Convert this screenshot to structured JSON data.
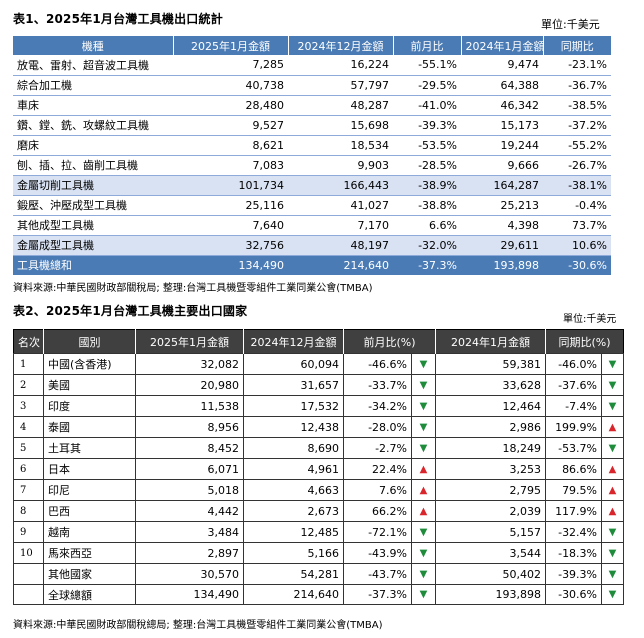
{
  "table1": {
    "title": "表1、2025年1月台灣工具機出口統計",
    "unit": "單位:千美元",
    "headers": [
      "機種",
      "2025年1月金額",
      "2024年12月金額",
      "前月比",
      "2024年1月金額",
      "同期比"
    ],
    "rows": [
      {
        "name": "放電、雷射、超音波工具機",
        "jan2025": "7,285",
        "dec2024": "16,224",
        "mom": "-55.1%",
        "jan2024": "9,474",
        "yoy": "-23.1%"
      },
      {
        "name": "綜合加工機",
        "jan2025": "40,738",
        "dec2024": "57,797",
        "mom": "-29.5%",
        "jan2024": "64,388",
        "yoy": "-36.7%"
      },
      {
        "name": "車床",
        "jan2025": "28,480",
        "dec2024": "48,287",
        "mom": "-41.0%",
        "jan2024": "46,342",
        "yoy": "-38.5%"
      },
      {
        "name": "鑽、鏜、銑、攻螺紋工具機",
        "jan2025": "9,527",
        "dec2024": "15,698",
        "mom": "-39.3%",
        "jan2024": "15,173",
        "yoy": "-37.2%"
      },
      {
        "name": "磨床",
        "jan2025": "8,621",
        "dec2024": "18,534",
        "mom": "-53.5%",
        "jan2024": "19,244",
        "yoy": "-55.2%"
      },
      {
        "name": "刨、插、拉、齒削工具機",
        "jan2025": "7,083",
        "dec2024": "9,903",
        "mom": "-28.5%",
        "jan2024": "9,666",
        "yoy": "-26.7%"
      },
      {
        "name": "金屬切削工具機",
        "jan2025": "101,734",
        "dec2024": "166,443",
        "mom": "-38.9%",
        "jan2024": "164,287",
        "yoy": "-38.1%"
      },
      {
        "name": "鍛壓、沖壓成型工具機",
        "jan2025": "25,116",
        "dec2024": "41,027",
        "mom": "-38.8%",
        "jan2024": "25,213",
        "yoy": "-0.4%"
      },
      {
        "name": "其他成型工具機",
        "jan2025": "7,640",
        "dec2024": "7,170",
        "mom": "6.6%",
        "jan2024": "4,398",
        "yoy": "73.7%"
      },
      {
        "name": "金屬成型工具機",
        "jan2025": "32,756",
        "dec2024": "48,197",
        "mom": "-32.0%",
        "jan2024": "29,611",
        "yoy": "10.6%"
      },
      {
        "name": "工具機總和",
        "jan2025": "134,490",
        "dec2024": "214,640",
        "mom": "-37.3%",
        "jan2024": "193,898",
        "yoy": "-30.6%"
      }
    ],
    "source": "資料來源:中華民國財政部關稅局;  整理:台灣工具機暨零組件工業同業公會(TMBA)"
  },
  "table2": {
    "title": "表2、2025年1月台灣工具機主要出口國家",
    "unit": "單位:千美元",
    "headers": [
      "名次",
      "國別",
      "2025年1月金額",
      "2024年12月金額",
      "前月比(%)",
      "2024年1月金額",
      "同期比(%)"
    ],
    "rows": [
      {
        "rank": "1",
        "country": "中國(含香港)",
        "jan2025": "32,082",
        "dec2024": "60,094",
        "mom": "-46.6%",
        "mom_dir": "down",
        "jan2024": "59,381",
        "yoy": "-46.0%",
        "yoy_dir": "down"
      },
      {
        "rank": "2",
        "country": "美國",
        "jan2025": "20,980",
        "dec2024": "31,657",
        "mom": "-33.7%",
        "mom_dir": "down",
        "jan2024": "33,628",
        "yoy": "-37.6%",
        "yoy_dir": "down"
      },
      {
        "rank": "3",
        "country": "印度",
        "jan2025": "11,538",
        "dec2024": "17,532",
        "mom": "-34.2%",
        "mom_dir": "down",
        "jan2024": "12,464",
        "yoy": "-7.4%",
        "yoy_dir": "down"
      },
      {
        "rank": "4",
        "country": "泰國",
        "jan2025": "8,956",
        "dec2024": "12,438",
        "mom": "-28.0%",
        "mom_dir": "down",
        "jan2024": "2,986",
        "yoy": "199.9%",
        "yoy_dir": "up"
      },
      {
        "rank": "5",
        "country": "土耳其",
        "jan2025": "8,452",
        "dec2024": "8,690",
        "mom": "-2.7%",
        "mom_dir": "down",
        "jan2024": "18,249",
        "yoy": "-53.7%",
        "yoy_dir": "down"
      },
      {
        "rank": "6",
        "country": "日本",
        "jan2025": "6,071",
        "dec2024": "4,961",
        "mom": "22.4%",
        "mom_dir": "up",
        "jan2024": "3,253",
        "yoy": "86.6%",
        "yoy_dir": "up"
      },
      {
        "rank": "7",
        "country": "印尼",
        "jan2025": "5,018",
        "dec2024": "4,663",
        "mom": "7.6%",
        "mom_dir": "up",
        "jan2024": "2,795",
        "yoy": "79.5%",
        "yoy_dir": "up"
      },
      {
        "rank": "8",
        "country": "巴西",
        "jan2025": "4,442",
        "dec2024": "2,673",
        "mom": "66.2%",
        "mom_dir": "up",
        "jan2024": "2,039",
        "yoy": "117.9%",
        "yoy_dir": "up"
      },
      {
        "rank": "9",
        "country": "越南",
        "jan2025": "3,484",
        "dec2024": "12,485",
        "mom": "-72.1%",
        "mom_dir": "down",
        "jan2024": "5,157",
        "yoy": "-32.4%",
        "yoy_dir": "down"
      },
      {
        "rank": "10",
        "country": "馬來西亞",
        "jan2025": "2,897",
        "dec2024": "5,166",
        "mom": "-43.9%",
        "mom_dir": "down",
        "jan2024": "3,544",
        "yoy": "-18.3%",
        "yoy_dir": "down"
      },
      {
        "rank": "",
        "country": "其他國家",
        "jan2025": "30,570",
        "dec2024": "54,281",
        "mom": "-43.7%",
        "mom_dir": "down",
        "jan2024": "50,402",
        "yoy": "-39.3%",
        "yoy_dir": "down"
      },
      {
        "rank": "",
        "country": "全球總額",
        "jan2025": "134,490",
        "dec2024": "214,640",
        "mom": "-37.3%",
        "mom_dir": "down",
        "jan2024": "193,898",
        "yoy": "-30.6%",
        "yoy_dir": "down"
      }
    ],
    "source": "資料來源:中華民國財政部關稅總局;  整理:台灣工具機暨零組件工業同業公會(TMBA)"
  },
  "colors": {
    "header_blue": "#4a7bb5",
    "row_shade": "#d9e2f3",
    "header_dark": "#404040",
    "arrow_up": "#d9262c",
    "arrow_down": "#1e8c3a"
  },
  "icons": {
    "up": "triangle-up-icon",
    "down": "triangle-down-icon"
  }
}
